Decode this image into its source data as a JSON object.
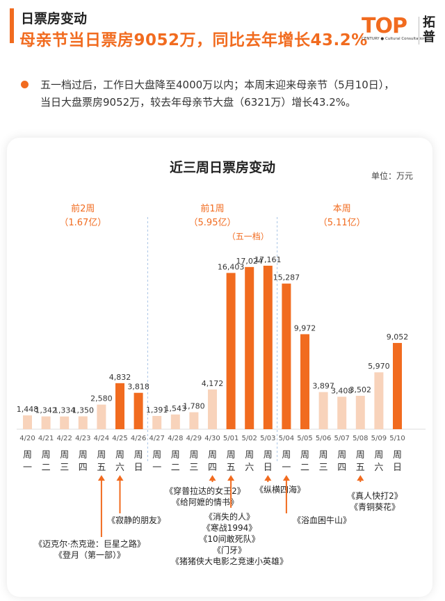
{
  "header": {
    "section_title": "日票房变动",
    "headline": "母亲节当日票房9052万，同比去年增长43.2%"
  },
  "logo": {
    "mark": "TOP",
    "sub": "CENTURY ● Cultural Consultation",
    "cn_line1": "拓",
    "cn_line2": "普"
  },
  "bullet": {
    "line1": "五一档过后，工作日大盘降至4000万以内；本周末迎来母亲节（5月10日），",
    "line2": "当日大盘票房9052万，较去年母亲节大盘（6321万）增长43.2%。"
  },
  "colors": {
    "accent": "#f16b1f",
    "light_bar": "#f8d3bb",
    "divider": "#a9c4e6"
  },
  "chart_data": {
    "type": "bar",
    "title": "近三周日票房变动",
    "unit": "单位：万元",
    "categories": [
      "4/20",
      "4/21",
      "4/22",
      "4/23",
      "4/24",
      "4/25",
      "4/26",
      "4/27",
      "4/28",
      "4/29",
      "4/30",
      "5/01",
      "5/02",
      "5/03",
      "5/04",
      "5/05",
      "5/06",
      "5/07",
      "5/08",
      "5/09",
      "5/10"
    ],
    "weekdays": [
      [
        "周",
        "一"
      ],
      [
        "周",
        "二"
      ],
      [
        "周",
        "三"
      ],
      [
        "周",
        "四"
      ],
      [
        "周",
        "五"
      ],
      [
        "周",
        "六"
      ],
      [
        "周",
        "日"
      ],
      [
        "周",
        "一"
      ],
      [
        "周",
        "二"
      ],
      [
        "周",
        "三"
      ],
      [
        "周",
        "四"
      ],
      [
        "周",
        "五"
      ],
      [
        "周",
        "六"
      ],
      [
        "周",
        "日"
      ],
      [
        "周",
        "一"
      ],
      [
        "周",
        "二"
      ],
      [
        "周",
        "三"
      ],
      [
        "周",
        "四"
      ],
      [
        "周",
        "五"
      ],
      [
        "周",
        "六"
      ],
      [
        "周",
        "日"
      ]
    ],
    "values": [
      1448,
      1342,
      1334,
      1350,
      2580,
      4832,
      3818,
      1391,
      1543,
      1780,
      4172,
      16403,
      17024,
      17161,
      15287,
      9972,
      3897,
      3408,
      3502,
      5970,
      9052
    ],
    "value_labels": [
      "1,448",
      "1,342",
      "1,334",
      "1,350",
      "2,580",
      "4,832",
      "3,818",
      "1,391",
      "1,543",
      "1,780",
      "4,172",
      "16,403",
      "17,024",
      "17,161",
      "15,287",
      "9,972",
      "3,897",
      "3,408",
      "3,502",
      "5,970",
      "9,052"
    ],
    "highlight": [
      false,
      false,
      false,
      false,
      false,
      true,
      true,
      false,
      false,
      false,
      false,
      true,
      true,
      true,
      true,
      true,
      false,
      false,
      false,
      false,
      true
    ],
    "groups": [
      {
        "name": "前2周",
        "total": "（1.67亿）",
        "start": 0,
        "end": 6
      },
      {
        "name": "前1周",
        "total": "（5.95亿）",
        "start": 7,
        "end": 13,
        "note": "（五一档）"
      },
      {
        "name": "本周",
        "total": "（5.11亿）",
        "start": 14,
        "end": 20
      }
    ],
    "releases": [
      {
        "index": 4,
        "lines": [
          "《迈克尔·杰克逊：巨星之路》",
          "《登月（第一部）》"
        ]
      },
      {
        "index": 5,
        "lines": [
          "《寂静的朋友》"
        ]
      },
      {
        "index": 10,
        "lines": [
          "《穿普拉达的女王2》",
          "《给阿嬷的情书》"
        ]
      },
      {
        "index": 11,
        "lines": [
          "《消失的人》",
          "《寒战1994》",
          "《10间敢死队》",
          "《门牙》",
          "《猪猪侠大电影之竞速小英雄》"
        ]
      },
      {
        "index": 13,
        "lines": [
          "《纵横四海》"
        ]
      },
      {
        "index": 14,
        "lines": [
          "《浴血困牛山》"
        ]
      },
      {
        "index": 18,
        "lines": [
          "《真人快打2》",
          "《青铜葵花》"
        ]
      }
    ]
  }
}
